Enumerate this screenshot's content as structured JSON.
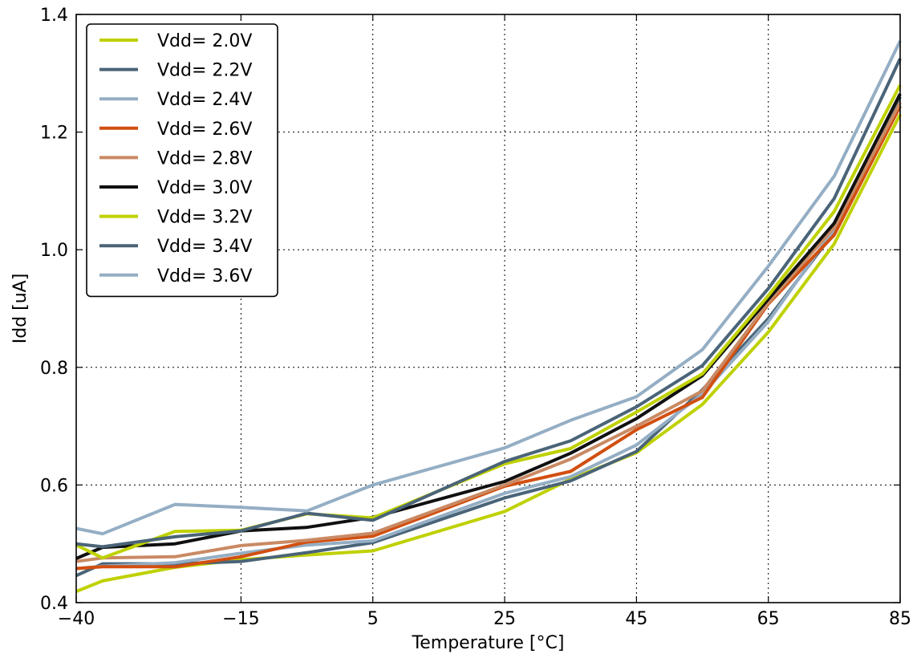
{
  "chart_data": {
    "type": "line",
    "xlabel": "Temperature [°C]",
    "ylabel": "Idd [uA]",
    "xlim": [
      -40,
      85
    ],
    "ylim": [
      0.4,
      1.4
    ],
    "xticks": [
      -40,
      -15,
      5,
      25,
      45,
      65,
      85
    ],
    "xtick_labels": [
      "−40",
      "−15",
      "5",
      "25",
      "45",
      "65",
      "85"
    ],
    "yticks": [
      0.4,
      0.6,
      0.8,
      1.0,
      1.2,
      1.4
    ],
    "ytick_labels": [
      "0.4",
      "0.6",
      "0.8",
      "1.0",
      "1.2",
      "1.4"
    ],
    "grid": true,
    "legend_position": "top-left",
    "x": [
      -40,
      -36,
      -25,
      -15,
      -5,
      5,
      25,
      35,
      45,
      55,
      65,
      75,
      85
    ],
    "series": [
      {
        "name": "Vdd= 2.0V",
        "color": "#bfd100",
        "values": [
          0.419,
          0.437,
          0.46,
          0.473,
          0.481,
          0.488,
          0.555,
          0.61,
          0.655,
          0.737,
          0.86,
          1.01,
          1.23
        ]
      },
      {
        "name": "Vdd= 2.2V",
        "color": "#4a6478",
        "values": [
          0.446,
          0.466,
          0.466,
          0.47,
          0.485,
          0.502,
          0.578,
          0.607,
          0.657,
          0.762,
          0.883,
          1.03,
          1.26
        ]
      },
      {
        "name": "Vdd= 2.4V",
        "color": "#94aec4",
        "values": [
          0.458,
          0.462,
          0.468,
          0.484,
          0.498,
          0.505,
          0.586,
          0.614,
          0.668,
          0.755,
          0.878,
          1.035,
          1.245
        ]
      },
      {
        "name": "Vdd= 2.6V",
        "color": "#d24f10",
        "values": [
          0.458,
          0.461,
          0.461,
          0.478,
          0.503,
          0.513,
          0.598,
          0.623,
          0.694,
          0.749,
          0.908,
          1.025,
          1.244
        ]
      },
      {
        "name": "Vdd= 2.8V",
        "color": "#c98a64",
        "values": [
          0.47,
          0.476,
          0.478,
          0.497,
          0.506,
          0.518,
          0.6,
          0.644,
          0.7,
          0.76,
          0.91,
          1.038,
          1.25
        ]
      },
      {
        "name": "Vdd= 3.0V",
        "color": "#101010",
        "values": [
          0.475,
          0.494,
          0.5,
          0.522,
          0.528,
          0.545,
          0.606,
          0.654,
          0.713,
          0.786,
          0.916,
          1.045,
          1.265
        ]
      },
      {
        "name": "Vdd= 3.2V",
        "color": "#bfd100",
        "values": [
          0.498,
          0.476,
          0.521,
          0.523,
          0.551,
          0.544,
          0.636,
          0.662,
          0.724,
          0.789,
          0.922,
          1.065,
          1.28
        ]
      },
      {
        "name": "Vdd= 3.4V",
        "color": "#4a6478",
        "values": [
          0.5,
          0.495,
          0.512,
          0.522,
          0.552,
          0.54,
          0.64,
          0.675,
          0.733,
          0.803,
          0.934,
          1.087,
          1.325
        ]
      },
      {
        "name": "Vdd= 3.6V",
        "color": "#94aec4",
        "values": [
          0.526,
          0.517,
          0.567,
          0.562,
          0.556,
          0.6,
          0.663,
          0.71,
          0.75,
          0.83,
          0.972,
          1.125,
          1.355
        ]
      }
    ]
  }
}
